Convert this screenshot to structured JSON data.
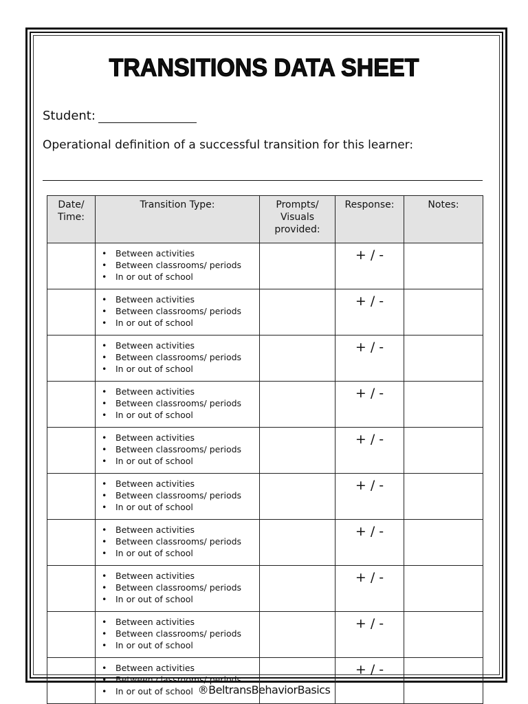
{
  "title": "TRANSITIONS DATA SHEET",
  "student_label": "Student:",
  "operational_definition_label": "Operational definition of a successful transition for this learner:",
  "table": {
    "headers": [
      "Date/ Time:",
      "Transition Type:",
      "Prompts/ Visuals provided:",
      "Response:",
      "Notes:"
    ],
    "transition_options": [
      "Between activities",
      "Between classrooms/ periods",
      "In or out of school"
    ],
    "response_marker": "+ / -",
    "row_count": 10
  },
  "footer": "®BeltransBehaviorBasics"
}
